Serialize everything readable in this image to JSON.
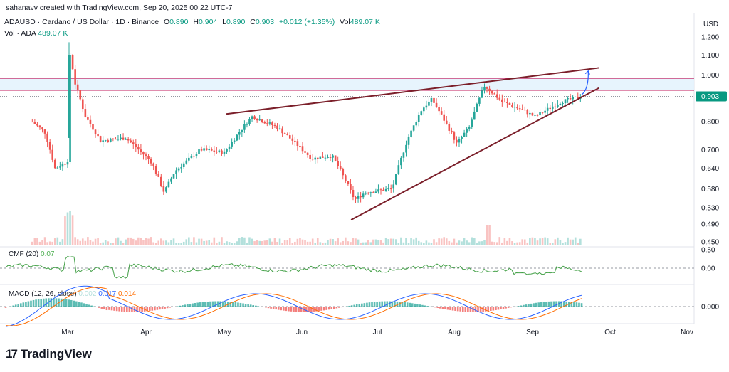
{
  "header": {
    "credit": "sahanavv created with TradingView.com, Sep 20, 2025 00:22 UTC-7",
    "symbol_line": "ADAUSD · Cardano / US Dollar · 1D · Binance",
    "ohlc": {
      "o_label": "O",
      "o": "0.890",
      "h_label": "H",
      "h": "0.904",
      "l_label": "L",
      "l": "0.890",
      "c_label": "C",
      "c": "0.903",
      "change": "+0.012 (+1.35%)",
      "vol_label": "Vol",
      "vol": "489.07 K"
    },
    "vol_line_label": "Vol · ADA",
    "vol_line_value": "489.07 K"
  },
  "indicators": {
    "cmf": {
      "label": "CMF (20)",
      "value": "0.07"
    },
    "macd": {
      "label": "MACD (12, 26, close)",
      "hist": "0.002",
      "macd": "0.017",
      "signal": "0.014"
    }
  },
  "brand": {
    "name": "TradingView",
    "mark": "17"
  },
  "colors": {
    "up": "#26a69a",
    "down": "#ef5350",
    "trendline": "#7b1f2a",
    "zone_fill": "#e3f2fd",
    "zone_border": "#c2185b",
    "arrow": "#2962ff",
    "price_badge": "#089981",
    "cmf_line": "#43a047",
    "macd_line": "#2962ff",
    "signal_line": "#ff6d00"
  },
  "chart_data": {
    "type": "candlestick",
    "symbol": "ADAUSD",
    "timeframe": "1D",
    "price_axis": {
      "unit": "USD",
      "ticks": [
        "1.200",
        "1.100",
        "1.000",
        "0.900",
        "0.800",
        "0.700",
        "0.640",
        "0.580",
        "0.530",
        "0.490",
        "0.450"
      ],
      "current_price": "0.903",
      "scale": "log"
    },
    "time_axis": {
      "labels": [
        "Mar",
        "Apr",
        "May",
        "Jun",
        "Jul",
        "Aug",
        "Sep",
        "Oct",
        "Nov"
      ]
    },
    "price_points": [
      {
        "date": "Feb 15",
        "price": 0.8
      },
      {
        "date": "Feb 20",
        "price": 0.76
      },
      {
        "date": "Feb 24",
        "price": 0.64
      },
      {
        "date": "Mar 1",
        "price": 0.66
      },
      {
        "date": "Mar 2",
        "price": 1.1
      },
      {
        "date": "Mar 4",
        "price": 0.96
      },
      {
        "date": "Mar 8",
        "price": 0.82
      },
      {
        "date": "Mar 14",
        "price": 0.73
      },
      {
        "date": "Mar 24",
        "price": 0.74
      },
      {
        "date": "Apr 3",
        "price": 0.66
      },
      {
        "date": "Apr 8",
        "price": 0.57
      },
      {
        "date": "Apr 12",
        "price": 0.63
      },
      {
        "date": "Apr 22",
        "price": 0.7
      },
      {
        "date": "May 1",
        "price": 0.69
      },
      {
        "date": "May 12",
        "price": 0.82
      },
      {
        "date": "May 22",
        "price": 0.78
      },
      {
        "date": "Jun 5",
        "price": 0.67
      },
      {
        "date": "Jun 13",
        "price": 0.68
      },
      {
        "date": "Jun 22",
        "price": 0.55
      },
      {
        "date": "Jun 26",
        "price": 0.57
      },
      {
        "date": "Jul 7",
        "price": 0.58
      },
      {
        "date": "Jul 13",
        "price": 0.73
      },
      {
        "date": "Jul 19",
        "price": 0.85
      },
      {
        "date": "Jul 23",
        "price": 0.89
      },
      {
        "date": "Aug 2",
        "price": 0.72
      },
      {
        "date": "Aug 7",
        "price": 0.78
      },
      {
        "date": "Aug 13",
        "price": 0.95
      },
      {
        "date": "Aug 20",
        "price": 0.88
      },
      {
        "date": "Aug 27",
        "price": 0.85
      },
      {
        "date": "Sep 2",
        "price": 0.82
      },
      {
        "date": "Sep 12",
        "price": 0.88
      },
      {
        "date": "Sep 20",
        "price": 0.903
      }
    ],
    "drawings": {
      "resistance_zone": {
        "from": 0.93,
        "to": 0.985
      },
      "upper_trendline": [
        {
          "date": "May 1",
          "price": 0.83
        },
        {
          "date": "Sep 25",
          "price": 1.035
        }
      ],
      "lower_trendline": [
        {
          "date": "Jun 20",
          "price": 0.5
        },
        {
          "date": "Sep 25",
          "price": 0.94
        }
      ],
      "projection_arrow": [
        {
          "date": "Sep 20",
          "price": 0.91
        },
        {
          "date": "Sep 22",
          "price": 1.02
        }
      ]
    },
    "cmf_axis_ticks": [
      "0.50",
      "0.00"
    ],
    "macd_axis_ticks": [
      "0.000"
    ]
  }
}
